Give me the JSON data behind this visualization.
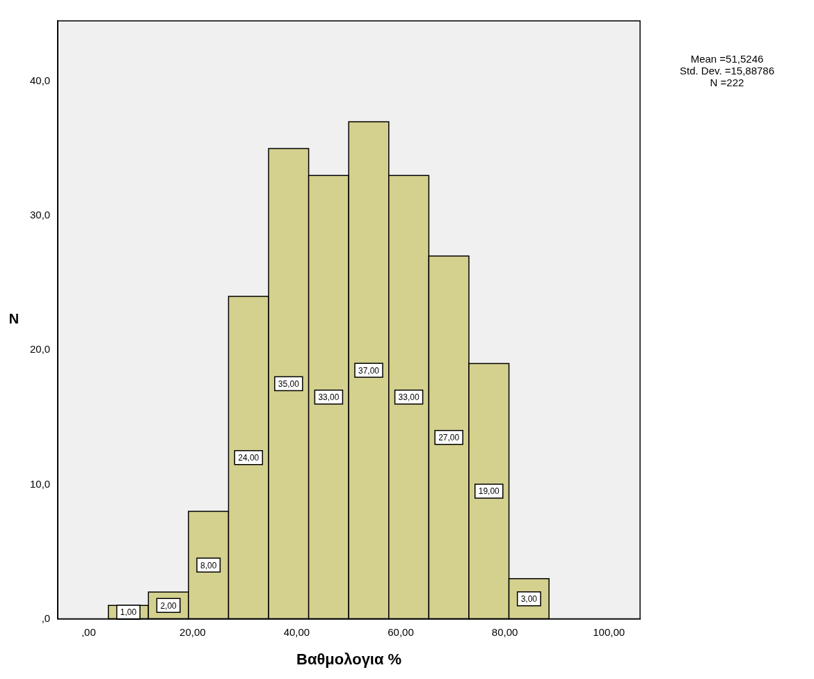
{
  "chart_data": {
    "type": "histogram",
    "xlabel": "Βαθμολογια %",
    "ylabel": "N",
    "bins": [
      3.8,
      11.5,
      19.2,
      26.9,
      34.6,
      42.3,
      50.0,
      57.7,
      65.4,
      73.1,
      80.8,
      88.5
    ],
    "values": [
      1,
      2,
      8,
      24,
      35,
      33,
      37,
      33,
      27,
      19,
      3
    ],
    "value_labels": [
      "1,00",
      "2,00",
      "8,00",
      "24,00",
      "35,00",
      "33,00",
      "37,00",
      "33,00",
      "27,00",
      "19,00",
      "3,00"
    ],
    "color": "#d4d08e",
    "xlim": [
      -5.9,
      106
    ],
    "xticks": [
      {
        "value": 0,
        "label": ",00"
      },
      {
        "value": 20,
        "label": "20,00"
      },
      {
        "value": 40,
        "label": "40,00"
      },
      {
        "value": 60,
        "label": "60,00"
      },
      {
        "value": 80,
        "label": "80,00"
      },
      {
        "value": 100,
        "label": "100,00"
      }
    ],
    "ylim": [
      0,
      44.5
    ],
    "yticks": [
      {
        "value": 0,
        "label": ",0"
      },
      {
        "value": 10,
        "label": "10,0"
      },
      {
        "value": 20,
        "label": "20,0"
      },
      {
        "value": 30,
        "label": "30,0"
      },
      {
        "value": 40,
        "label": "40,0"
      }
    ],
    "grid": false,
    "legend": false,
    "annotations": [
      "Mean =51,5246\nStd. Dev. =15,88786\nN =222"
    ]
  }
}
